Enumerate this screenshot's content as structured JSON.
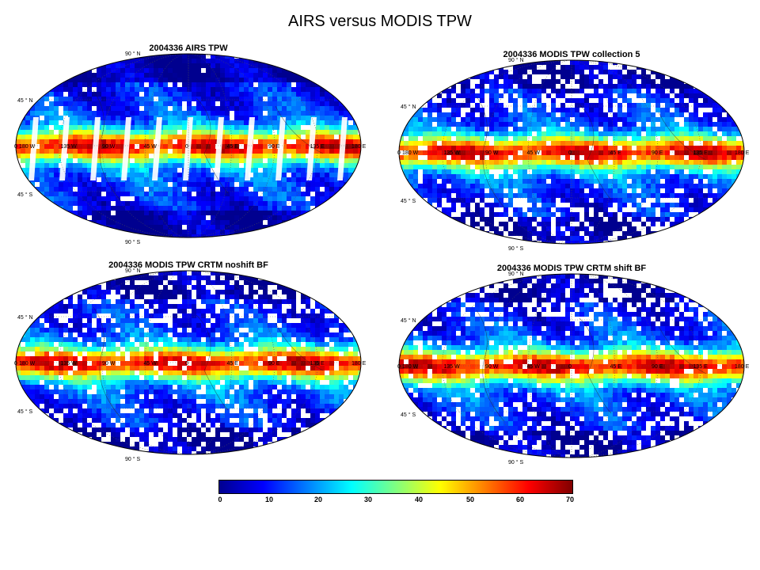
{
  "title": "AIRS versus MODIS TPW",
  "panels": [
    {
      "title": "2004336 AIRS TPW",
      "style": "airs"
    },
    {
      "title": "2004336 MODIS TPW collection 5",
      "style": "modis"
    },
    {
      "title": "2004336 MODIS TPW CRTM noshift BF",
      "style": "crtm"
    },
    {
      "title": "2004336 MODIS TPW CRTM shift BF",
      "style": "crtm"
    }
  ],
  "lat_labels": {
    "n90": "90 ° N",
    "n45": "45 ° N",
    "eq": "0",
    "s45": "45 ° S",
    "s90": "90 ° S"
  },
  "lon_labels": [
    "180 W",
    "135 W",
    "90 W",
    "45 W",
    "0",
    "45 E",
    "90 E",
    "135 E",
    "180 E"
  ],
  "colorbar": {
    "ticks": [
      "0",
      "10",
      "20",
      "30",
      "40",
      "50",
      "60",
      "70"
    ],
    "min": 0,
    "max": 70,
    "colors": [
      "#00008f",
      "#0000ff",
      "#0080ff",
      "#00ffff",
      "#80ff80",
      "#ffff00",
      "#ff8000",
      "#ff0000",
      "#800000"
    ]
  }
}
